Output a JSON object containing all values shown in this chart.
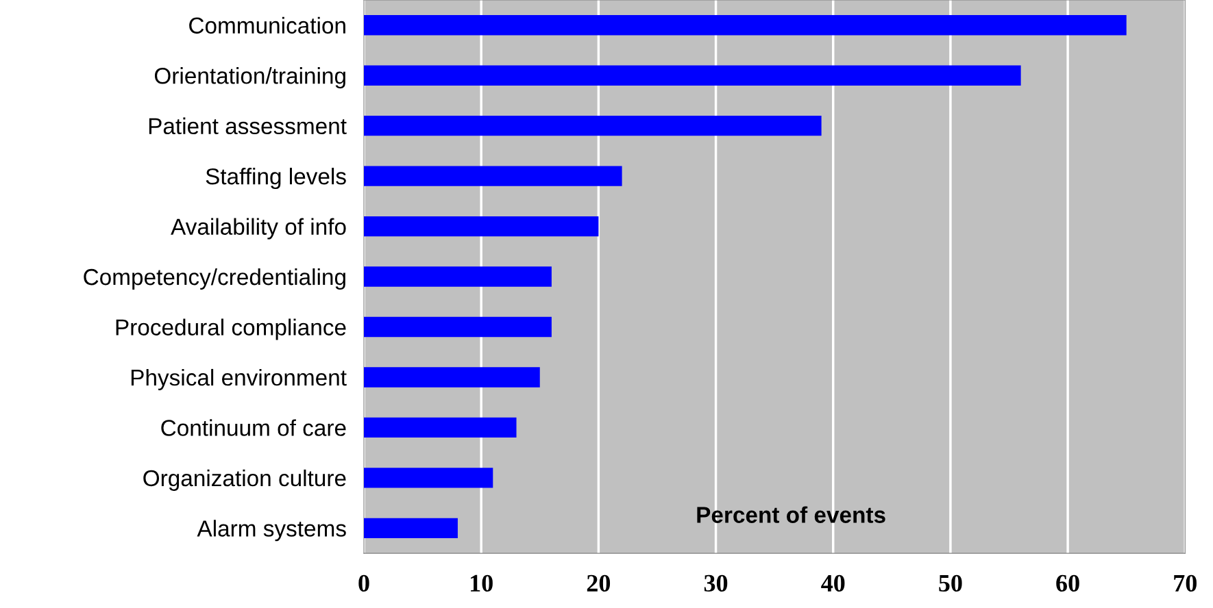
{
  "chart_data": {
    "type": "bar",
    "orientation": "horizontal",
    "xlabel": "Percent of events",
    "categories": [
      "Communication",
      "Orientation/training",
      "Patient assessment",
      "Staffing levels",
      "Availability of info",
      "Competency/credentialing",
      "Procedural compliance",
      "Physical environment",
      "Continuum of care",
      "Organization culture",
      "Alarm systems"
    ],
    "values": [
      65,
      56,
      39,
      22,
      20,
      16,
      16,
      15,
      13,
      11,
      8
    ],
    "color": "#0000ff",
    "xlim": [
      0,
      70
    ],
    "xticks": [
      0,
      10,
      20,
      30,
      40,
      50,
      60,
      70
    ],
    "grid": "x"
  }
}
